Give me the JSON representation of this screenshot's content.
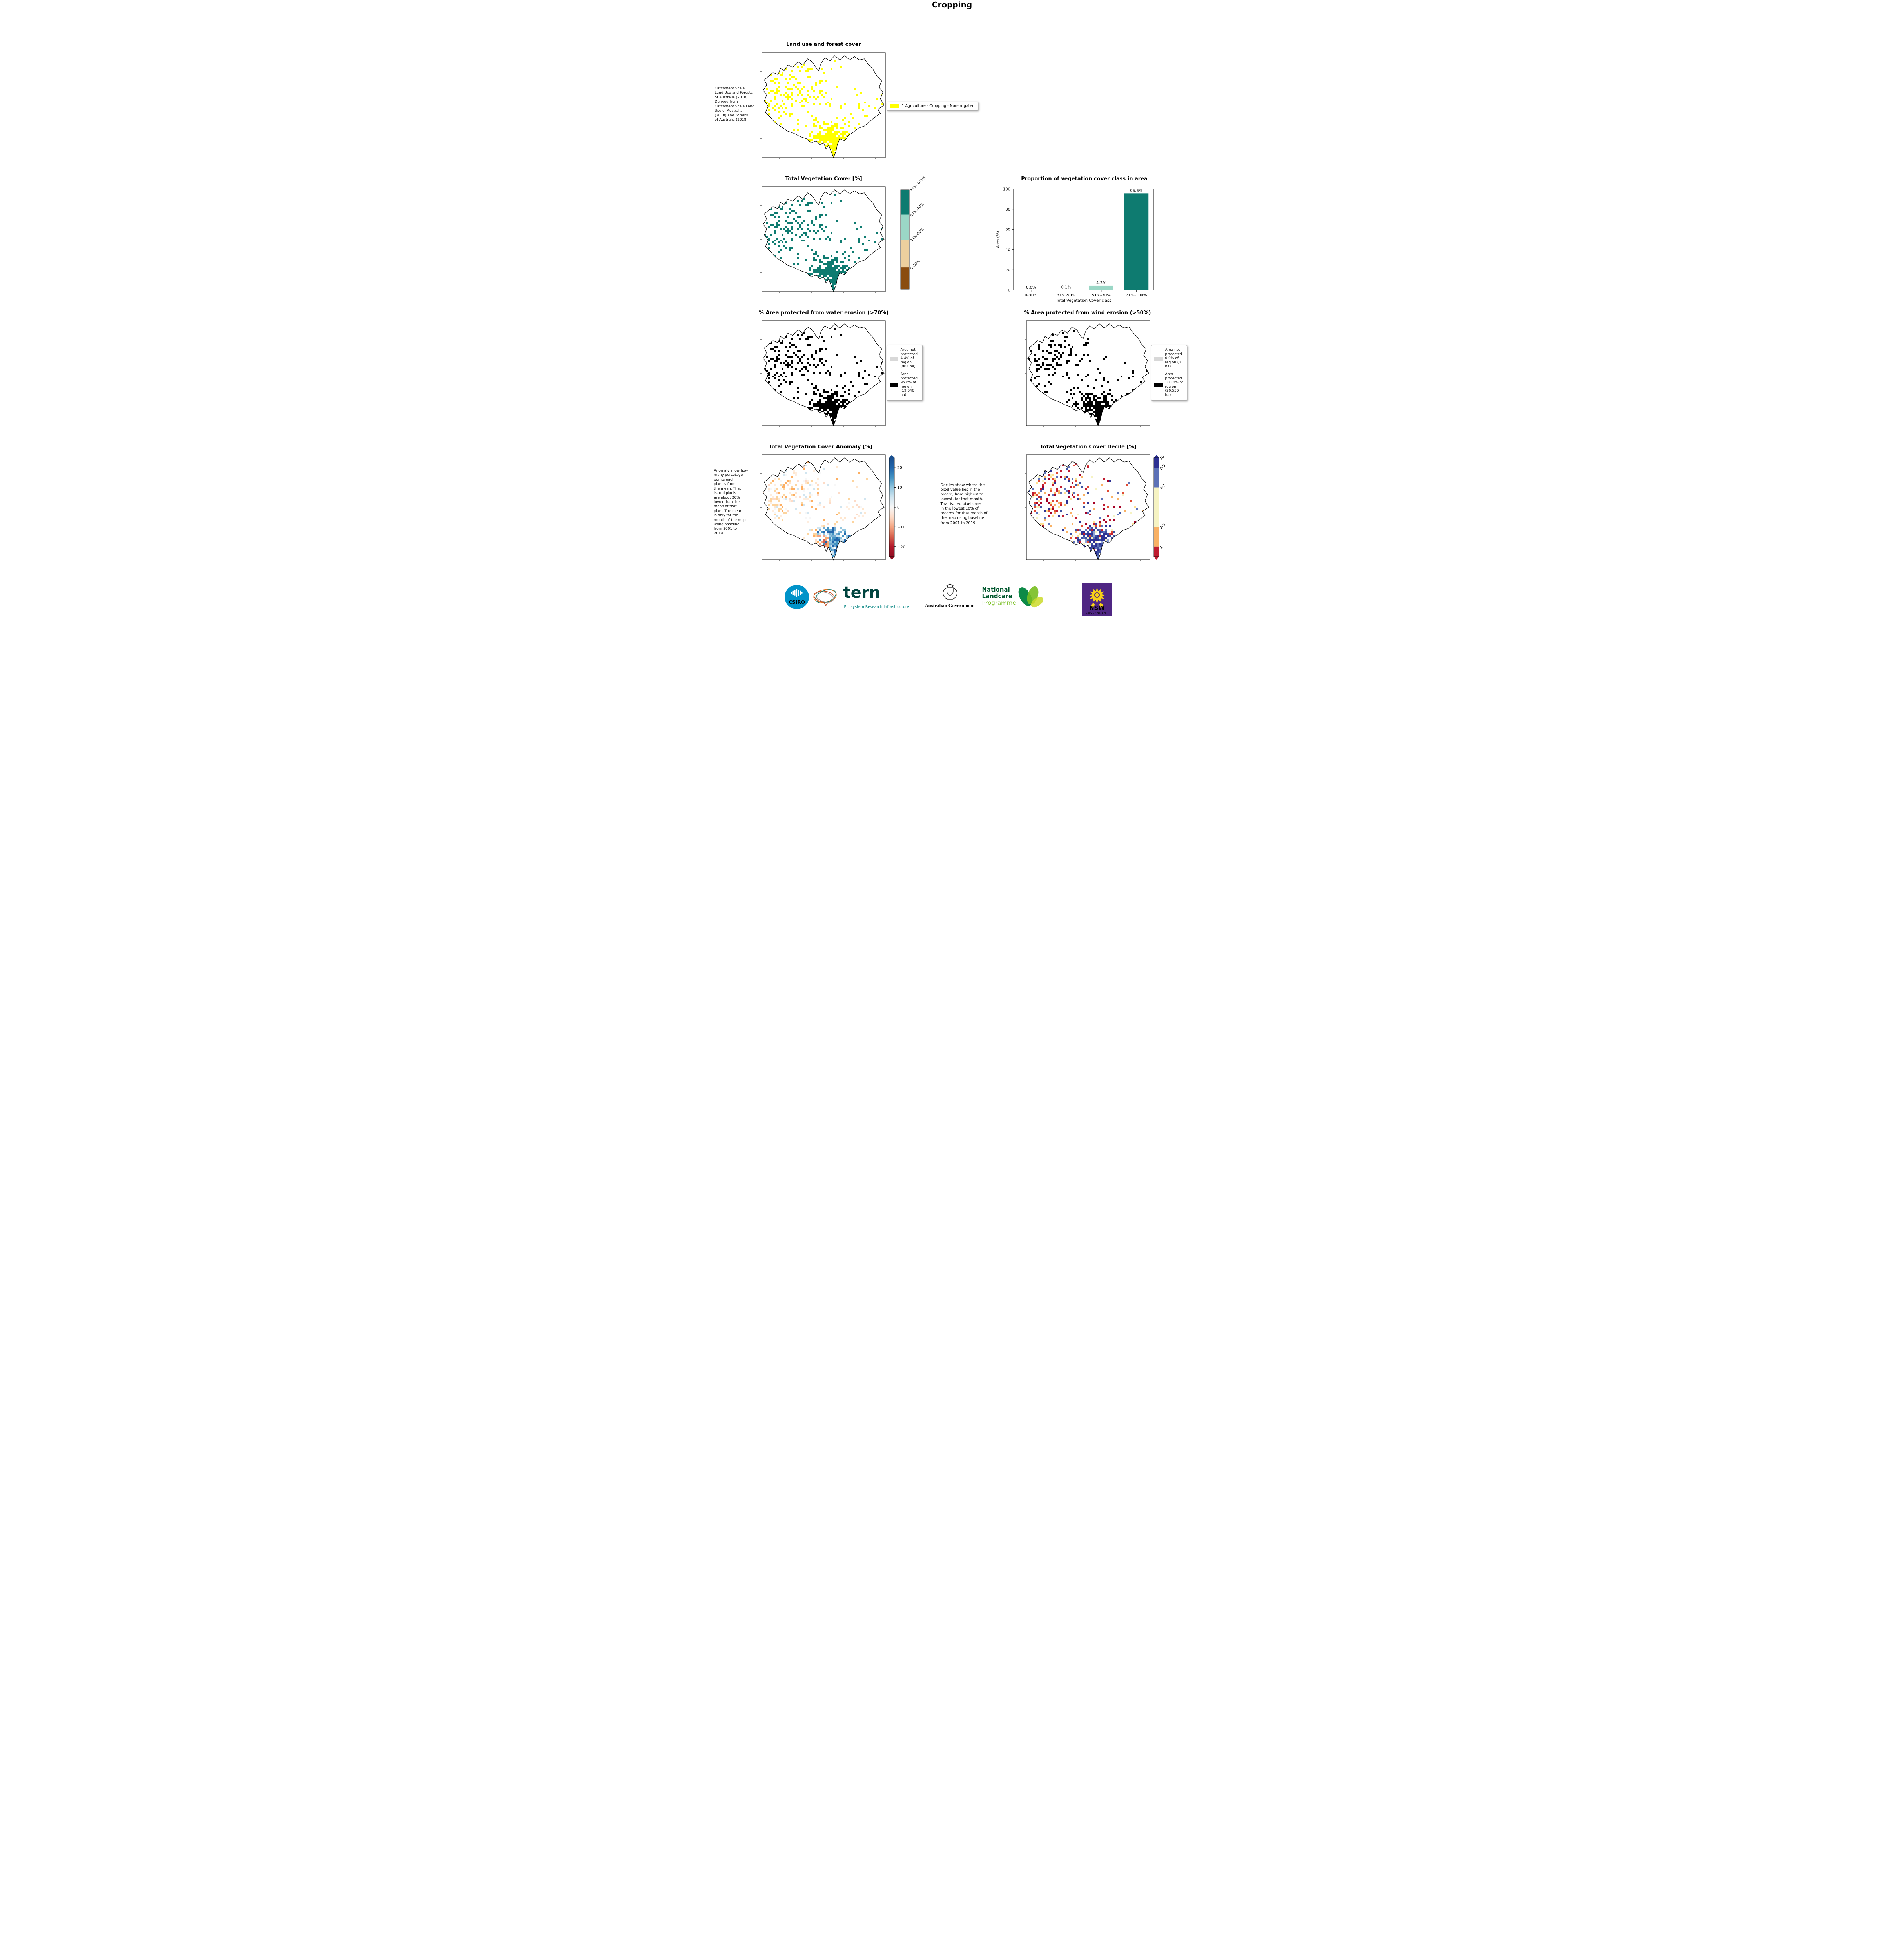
{
  "title": "Cropping",
  "colors": {
    "cropping_yellow": "#ffff00",
    "teal_dark": "#0e7b70",
    "teal_light": "#9bd7c6",
    "tan": "#eccf9e",
    "brown": "#8a4d10",
    "protected_black": "#000000",
    "not_protected_gray": "#d8d8d8",
    "anomaly_blue": "#2166ac",
    "anomaly_red": "#b2182b",
    "decile_blue": "#2d3193",
    "decile_red": "#c01c30"
  },
  "panels": {
    "land_use": {
      "title": "Land use and forest cover",
      "description": "Catchment Scale\nLand Use and Forests\nof Australia (2018)\nDerived from\nCatchment Scale Land\nUse of Australia\n(2018) and Forests\nof Australia (2018)",
      "legend_label": "1 Agriculture - Cropping - Non-irrigated"
    },
    "veg_cover": {
      "title": "Total Vegetation Cover [%]",
      "colorbar": {
        "segments": [
          {
            "label": "71%-100%",
            "color": "#0e7b70",
            "frac": 0.25
          },
          {
            "label": "51%-70%",
            "color": "#9bd7c6",
            "frac": 0.25
          },
          {
            "label": "31%-50%",
            "color": "#eccf9e",
            "frac": 0.28
          },
          {
            "label": "0-30%",
            "color": "#8a4d10",
            "frac": 0.22
          }
        ]
      }
    },
    "water_erosion": {
      "title": "% Area protected from water erosion (>70%)",
      "legend": [
        {
          "swatch": "not-protected",
          "text": "Area not\nprotected\n4.4% of\nregion\n(904 ha)"
        },
        {
          "swatch": "protected",
          "text": "Area\nprotected\n95.6% of\nregion\n(19,646\nha)"
        }
      ]
    },
    "wind_erosion": {
      "title": "% Area protected from wind erosion (>50%)",
      "legend": [
        {
          "swatch": "not-protected",
          "text": "Area not\nprotected\n0.0% of\nregion (0\nha)"
        },
        {
          "swatch": "protected",
          "text": "Area\nprotected\n100.0% of\nregion\n(20,550\nha)"
        }
      ]
    },
    "anomaly": {
      "title": "Total Vegetation Cover Anomaly [%]",
      "description": "Anomaly show how\nmany percetage\npoints each\npixel is from\nthe mean. That\nis, red pixels\nare about 20%\nlower than the\nmean of that\npixel. The mean\nis only for the\nmonth of the map\nusing baseline\nfrom 2001 to\n2019.",
      "ticks": [
        "20",
        "10",
        "0",
        "−10",
        "−20"
      ],
      "tick_values": [
        20,
        10,
        0,
        -10,
        -20
      ],
      "range": [
        -25,
        25
      ],
      "colors_top_to_bottom": [
        "#1a4f8f",
        "#2166ac",
        "#4393c3",
        "#92c5de",
        "#d1e5f0",
        "#f7f7f7",
        "#fddbc7",
        "#f4a582",
        "#d6604d",
        "#b2182b",
        "#8f0e21"
      ]
    },
    "decile": {
      "title": "Total Vegetation Cover Decile [%]",
      "description": "Deciles show where the\npixel value lies in the\nrecord, from highest to\nlowest, for that month.\nThat is, red pixels are\nin the lowest 10% of\nrecords for that month of\nthe map using baseline\nfrom 2001 to 2019.",
      "segments": [
        {
          "label": "10",
          "color": "#2d3193",
          "frac": 0.1
        },
        {
          "label": "8-9",
          "color": "#5c71b7",
          "frac": 0.2
        },
        {
          "label": "4-7",
          "color": "#f6f3c2",
          "frac": 0.4
        },
        {
          "label": "2-3",
          "color": "#f9b164",
          "frac": 0.2
        },
        {
          "label": "1",
          "color": "#c01c30",
          "frac": 0.1
        }
      ]
    }
  },
  "chart_data": {
    "type": "bar",
    "title": "Proportion of vegetation cover class in area",
    "categories": [
      "0-30%",
      "31%-50%",
      "51%-70%",
      "71%-100%"
    ],
    "values": [
      0.0,
      0.1,
      4.3,
      95.6
    ],
    "bar_labels": [
      "0.0%",
      "0.1%",
      "4.3%",
      "95.6%"
    ],
    "bar_colors": [
      "#8a4d10",
      "#eccf9e",
      "#9bd7c6",
      "#0e7b70"
    ],
    "xlabel": "Total Vegetation Cover class",
    "ylabel": "Area (%)",
    "ylim": [
      0,
      100
    ],
    "yticks": [
      0,
      20,
      40,
      60,
      80,
      100
    ],
    "grid": false,
    "legend_position": "none"
  },
  "footer": {
    "csiro_label": "CSIRO",
    "tern_wordmark": "tern",
    "tern_tagline": "Ecosystem Research Infrastructure",
    "australian_government": "Australian Government",
    "landcare_line1": "National",
    "landcare_line2": "Landcare",
    "landcare_line3": "Programme",
    "nsw_label": "NSW",
    "nsw_sub": "GOVERNMENT"
  }
}
